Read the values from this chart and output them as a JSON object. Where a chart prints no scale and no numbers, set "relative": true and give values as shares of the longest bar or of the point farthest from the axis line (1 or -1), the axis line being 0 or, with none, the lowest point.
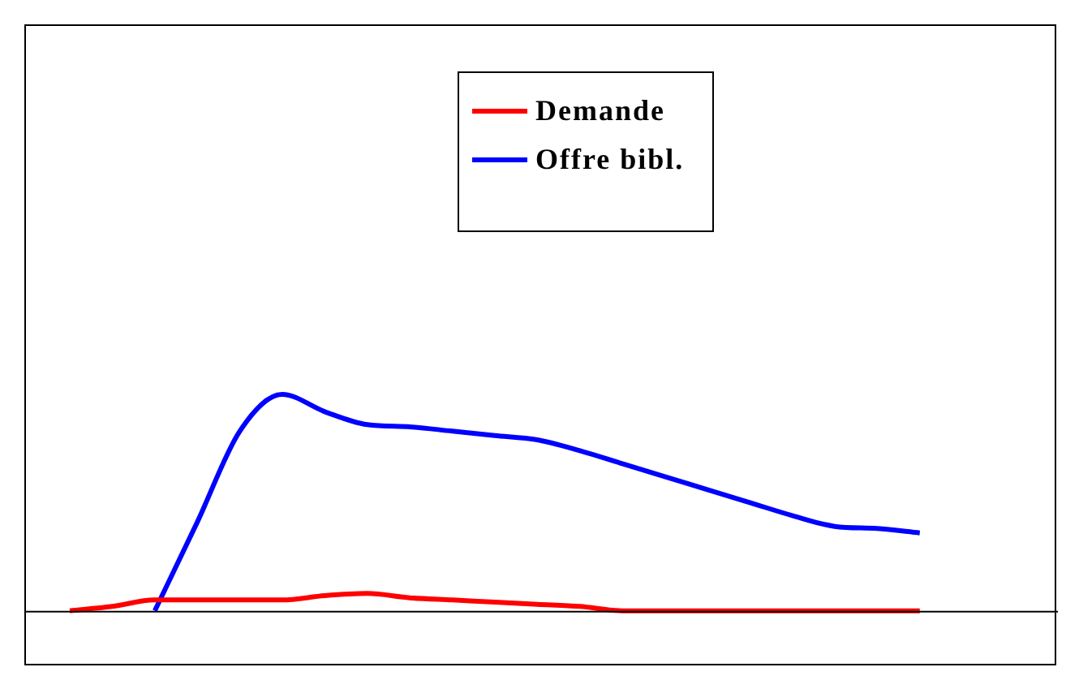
{
  "chart_data": {
    "type": "line",
    "relative": true,
    "legend": "top",
    "marker": "none",
    "line_style": "solid",
    "categories": [
      null,
      null,
      null,
      null,
      null,
      null,
      null,
      null,
      null,
      null,
      null,
      null,
      null,
      null,
      null,
      null,
      null,
      null,
      null,
      null,
      null
    ],
    "series": [
      {
        "name": "Demande",
        "color": "#ff0000",
        "values": [
          0,
          0.02,
          0.05,
          0.05,
          0.05,
          0.05,
          0.07,
          0.08,
          0.06,
          0.05,
          0.04,
          0.03,
          0.02,
          0,
          0,
          0,
          0,
          0,
          0,
          0,
          0
        ]
      },
      {
        "name": "Offre bibl.",
        "color": "#0000ff",
        "values": [
          null,
          null,
          0,
          0.41,
          0.83,
          1,
          0.92,
          0.86,
          0.85,
          0.83,
          0.81,
          0.79,
          0.74,
          0.68,
          0.62,
          0.56,
          0.5,
          0.44,
          0.39,
          0.38,
          0.36
        ]
      }
    ]
  }
}
